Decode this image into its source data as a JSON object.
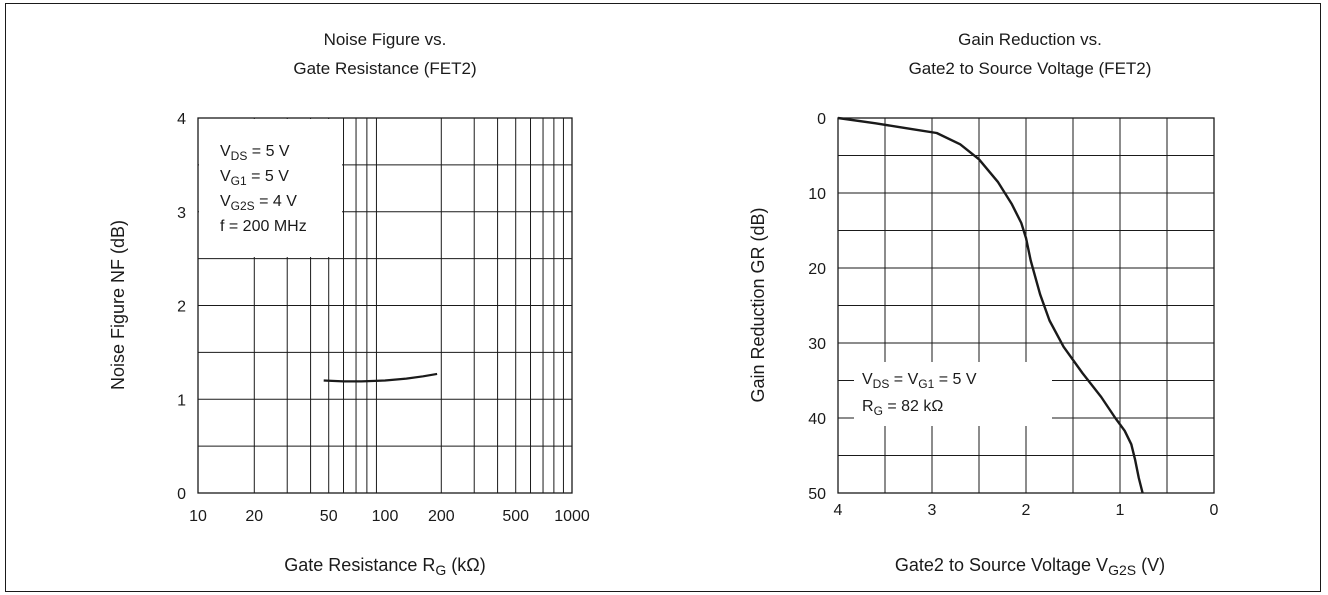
{
  "chart_data": [
    {
      "type": "line",
      "title_lines": [
        "Noise Figure vs.",
        "Gate Resistance (FET2)"
      ],
      "xlabel": {
        "main": "Gate Resistance R",
        "sub": "G",
        "unit": " (kΩ)"
      },
      "ylabel": "Noise Figure NF  (dB)",
      "x_scale": "log",
      "xlim": [
        10,
        1000
      ],
      "ylim": [
        0,
        4
      ],
      "x_ticks": [
        10,
        20,
        50,
        100,
        200,
        500,
        1000
      ],
      "x_tick_labels": [
        "10",
        "20",
        "50",
        "100",
        "200",
        "500",
        "1000"
      ],
      "y_ticks": [
        0,
        1,
        2,
        3,
        4
      ],
      "y_tick_labels": [
        "0",
        "1",
        "2",
        "3",
        "4"
      ],
      "grid": true,
      "annotations": [
        {
          "main": "V",
          "sub": "DS",
          "rest": " = 5 V"
        },
        {
          "main": "V",
          "sub": "G1",
          "rest": " = 5 V"
        },
        {
          "main": "V",
          "sub": "G2S",
          "rest": " = 4 V"
        },
        {
          "main": "f = 200 MHz",
          "sub": "",
          "rest": ""
        }
      ],
      "series": [
        {
          "x": [
            47,
            60,
            75,
            100,
            130,
            160,
            190
          ],
          "y": [
            1.2,
            1.19,
            1.19,
            1.2,
            1.22,
            1.245,
            1.27
          ]
        }
      ]
    },
    {
      "type": "line",
      "title_lines": [
        "Gain Reduction vs.",
        "Gate2 to Source Voltage (FET2)"
      ],
      "xlabel": {
        "main": "Gate2 to Source Voltage V",
        "sub": "G2S",
        "unit": " (V)"
      },
      "ylabel": "Gain Reduction GR  (dB)",
      "x_reversed": true,
      "y_reversed": true,
      "xlim": [
        4,
        0
      ],
      "ylim": [
        0,
        50
      ],
      "x_ticks": [
        4,
        3,
        2,
        1,
        0
      ],
      "x_tick_labels": [
        "4",
        "3",
        "2",
        "1",
        "0"
      ],
      "y_ticks": [
        0,
        10,
        20,
        30,
        40,
        50
      ],
      "y_tick_labels": [
        "0",
        "10",
        "20",
        "30",
        "40",
        "50"
      ],
      "grid": true,
      "annotations": [
        {
          "main": "V",
          "sub": "DS",
          "rest": " = V",
          "sub2": "G1",
          "rest2": " = 5 V"
        },
        {
          "main": "R",
          "sub": "G",
          "rest": " = 82 kΩ",
          "sub2": "",
          "rest2": ""
        }
      ],
      "series": [
        {
          "x": [
            4,
            3.6,
            3.2,
            2.95,
            2.7,
            2.5,
            2.3,
            2.15,
            2.05,
            2.0,
            1.95,
            1.85,
            1.75,
            1.6,
            1.4,
            1.2,
            1.05,
            0.95,
            0.88,
            0.84,
            0.8,
            0.76
          ],
          "y": [
            0,
            0.7,
            1.5,
            2,
            3.5,
            5.5,
            8.5,
            11.5,
            14,
            16,
            19,
            23.5,
            27,
            30.5,
            34,
            37.2,
            40,
            41.7,
            43.5,
            45.5,
            48,
            50
          ]
        }
      ]
    }
  ]
}
